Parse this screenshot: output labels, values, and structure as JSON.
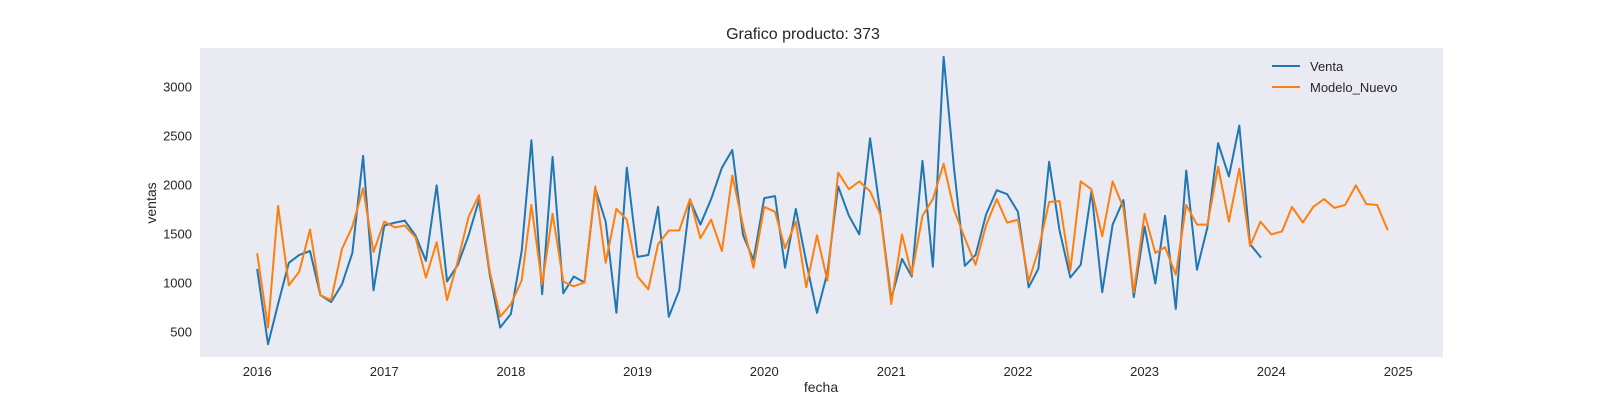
{
  "chart_data": {
    "type": "line",
    "title": "Grafico producto: 373",
    "xlabel": "fecha",
    "ylabel": "ventas",
    "x_axis": "date",
    "xlim": [
      "2015-07-20",
      "2025-05-10"
    ],
    "ylim": [
      240,
      3390
    ],
    "x_ticks": [
      "2016",
      "2017",
      "2018",
      "2019",
      "2020",
      "2021",
      "2022",
      "2023",
      "2024",
      "2025"
    ],
    "y_ticks": [
      500,
      1000,
      1500,
      2000,
      2500,
      3000
    ],
    "grid": false,
    "legend_position": "top-right",
    "background_color": "#eaeaf2",
    "series": [
      {
        "name": "Venta",
        "color": "#1f77b4",
        "start": "2016-01",
        "frequency": "monthly",
        "values": [
          1130,
          370,
          780,
          1200,
          1280,
          1320,
          870,
          800,
          980,
          1300,
          2290,
          920,
          1580,
          1610,
          1630,
          1480,
          1220,
          1990,
          1010,
          1180,
          1480,
          1840,
          1080,
          540,
          680,
          1320,
          2450,
          880,
          2280,
          890,
          1060,
          1000,
          1960,
          1620,
          690,
          2170,
          1260,
          1280,
          1770,
          650,
          920,
          1840,
          1590,
          1850,
          2170,
          2350,
          1480,
          1230,
          1860,
          1880,
          1150,
          1750,
          1210,
          690,
          1100,
          1980,
          1680,
          1490,
          2470,
          1700,
          830,
          1240,
          1060,
          2240,
          1160,
          3300,
          2160,
          1170,
          1280,
          1690,
          1940,
          1900,
          1720,
          950,
          1140,
          2230,
          1530,
          1050,
          1180,
          1930,
          900,
          1590,
          1840,
          850,
          1570,
          990,
          1680,
          730,
          2140,
          1130,
          1560,
          2420,
          2080,
          2600,
          1390,
          1260
        ]
      },
      {
        "name": "Modelo_Nuevo",
        "color": "#ff7f0e",
        "start": "2016-01",
        "frequency": "monthly",
        "values": [
          1290,
          540,
          1780,
          970,
          1110,
          1540,
          870,
          820,
          1340,
          1570,
          1960,
          1310,
          1620,
          1560,
          1580,
          1460,
          1050,
          1410,
          820,
          1220,
          1670,
          1890,
          1110,
          650,
          780,
          1020,
          1790,
          980,
          1700,
          1010,
          960,
          1000,
          1980,
          1200,
          1750,
          1640,
          1060,
          930,
          1390,
          1530,
          1530,
          1850,
          1450,
          1640,
          1320,
          2090,
          1580,
          1150,
          1770,
          1720,
          1350,
          1620,
          950,
          1480,
          1020,
          2120,
          1950,
          2030,
          1930,
          1690,
          780,
          1490,
          1080,
          1680,
          1850,
          2210,
          1740,
          1450,
          1180,
          1580,
          1850,
          1610,
          1640,
          1010,
          1330,
          1820,
          1830,
          1120,
          2030,
          1950,
          1470,
          2030,
          1760,
          900,
          1700,
          1300,
          1360,
          1080,
          1790,
          1590,
          1590,
          2180,
          1620,
          2160,
          1370,
          1620,
          1490,
          1520,
          1770,
          1610,
          1770,
          1850,
          1760,
          1790,
          1990,
          1800,
          1790,
          1540
        ]
      }
    ]
  }
}
